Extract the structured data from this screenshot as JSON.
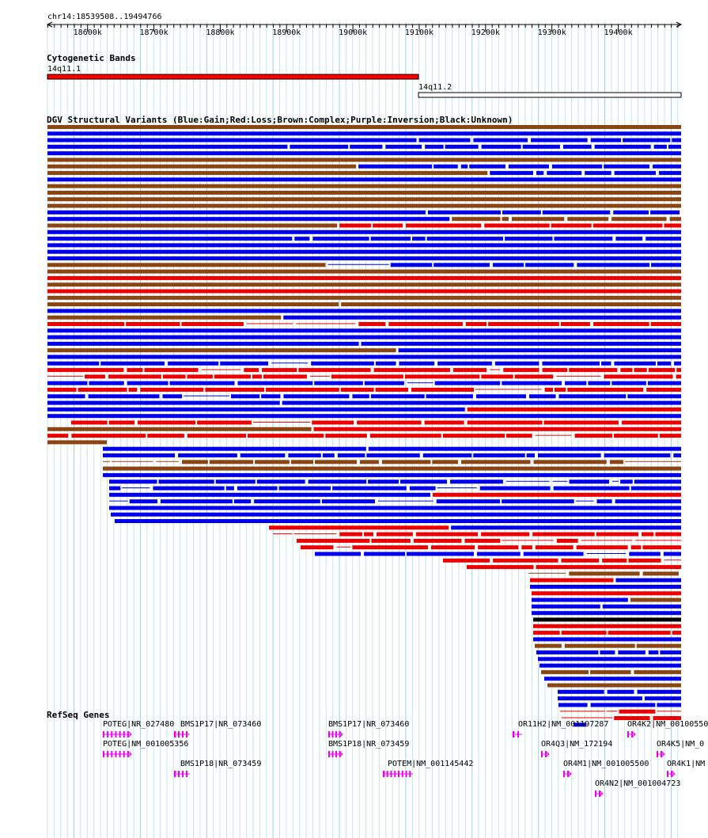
{
  "location": "chr14:18539508..19494766",
  "ruler": {
    "start": 18539508,
    "end": 19494766,
    "ticks": [
      "18600k",
      "18700k",
      "18800k",
      "18900k",
      "19000k",
      "19100k",
      "19200k",
      "19300k",
      "19400k"
    ]
  },
  "tracks": {
    "cytoband": {
      "title": "Cytogenetic Bands",
      "bands": [
        {
          "name": "14q11.1",
          "start": 18539508,
          "end": 19100000,
          "color": "#ff0000"
        },
        {
          "name": "14q11.2",
          "start": 19100000,
          "end": 19494766,
          "color": "#ffffff"
        }
      ]
    },
    "dgv": {
      "title": "DGV Structural Variants (Blue:Gain;Red:Loss;Brown:Complex;Purple:Inversion;Black:Unknown)",
      "colors": {
        "gain": "#0000ee",
        "loss": "#ee0000",
        "complex": "#8b4513",
        "inversion": "#800080",
        "unknown": "#000000"
      }
    },
    "refseq": {
      "title": "RefSeq Genes",
      "color": "#ee00ee",
      "genes": [
        {
          "label": "POTEG|NR_027480",
          "strand": "+"
        },
        {
          "label": "POTEG|NM_001005356",
          "strand": "+"
        },
        {
          "label": "BMS1P17|NR_073460",
          "strand": "-"
        },
        {
          "label": "BMS1P18|NR_073459",
          "strand": "-"
        },
        {
          "label": "BMS1P17|NR_073460",
          "strand": "+"
        },
        {
          "label": "BMS1P18|NR_073459",
          "strand": "+"
        },
        {
          "label": "POTEM|NM_001145442",
          "strand": "-"
        },
        {
          "label": "OR11H2|NM_001197287",
          "strand": "-"
        },
        {
          "label": "OR4Q3|NM_172194",
          "strand": "+"
        },
        {
          "label": "OR4M1|NM_001005500",
          "strand": "+"
        },
        {
          "label": "OR4N2|NM_001004723",
          "strand": "+"
        },
        {
          "label": "OR4K2|NM_00100550",
          "strand": "+"
        },
        {
          "label": "OR4K5|NM_0",
          "strand": "+"
        },
        {
          "label": "OR4K1|NM",
          "strand": "+"
        }
      ]
    }
  }
}
